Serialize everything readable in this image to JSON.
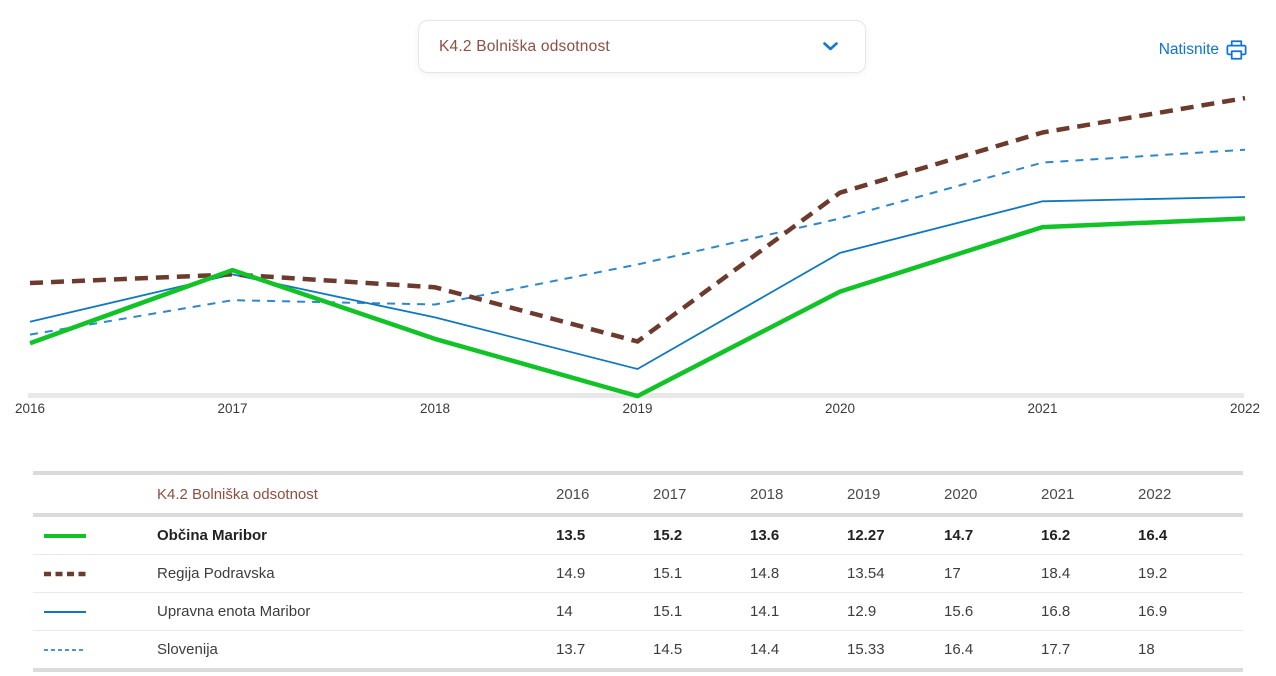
{
  "header": {
    "metric_select": {
      "value": "K4.2 Bolniška odsotnost"
    },
    "print_label": "Natisnite",
    "link_color": "#0e72d6",
    "select_text_color": "#8e4f41"
  },
  "chart_data": {
    "type": "line",
    "x": [
      "2016",
      "2017",
      "2018",
      "2019",
      "2020",
      "2021",
      "2022"
    ],
    "ylim": [
      12.0,
      19.6
    ],
    "grid": false,
    "legend_position": "table-below",
    "title": "K4.2 Bolniška odsotnost",
    "series": [
      {
        "name": "Občina Maribor",
        "color": "#12c327",
        "line_style": "thick-solid",
        "emphasized": true,
        "values": [
          13.5,
          15.2,
          13.6,
          12.27,
          14.7,
          16.2,
          16.4
        ]
      },
      {
        "name": "Regija Podravska",
        "color": "#6d3b2d",
        "line_style": "thick-dashed",
        "emphasized": false,
        "values": [
          14.9,
          15.1,
          14.8,
          13.54,
          17,
          18.4,
          19.2
        ]
      },
      {
        "name": "Upravna enota Maribor",
        "color": "#0f78c1",
        "line_style": "thin-solid",
        "emphasized": false,
        "values": [
          14,
          15.1,
          14.1,
          12.9,
          15.6,
          16.8,
          16.9
        ]
      },
      {
        "name": "Slovenija",
        "color": "#2e87cd",
        "line_style": "thin-dashed",
        "emphasized": false,
        "values": [
          13.7,
          14.5,
          14.4,
          15.33,
          16.4,
          17.7,
          18
        ]
      }
    ]
  },
  "table": {
    "title": "K4.2 Bolniška odsotnost",
    "title_color": "#8e4f41",
    "columns": [
      "2016",
      "2017",
      "2018",
      "2019",
      "2020",
      "2021",
      "2022"
    ]
  }
}
